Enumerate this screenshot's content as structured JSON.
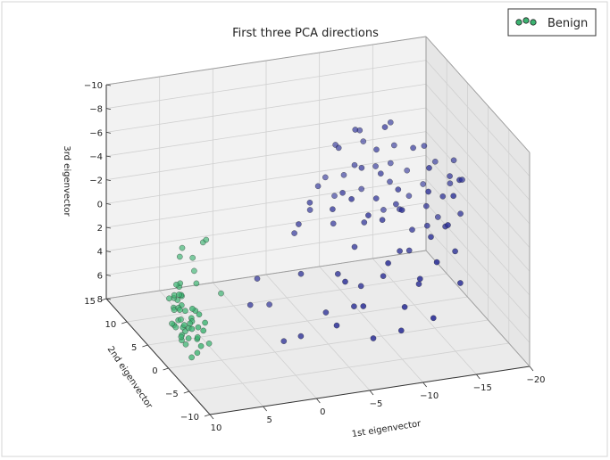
{
  "chart_data": {
    "type": "scatter",
    "title": "First three PCA directions",
    "xlabel": "1st eigenvector",
    "ylabel": "2nd eigenvector",
    "zlabel": "3rd eigenvector",
    "xlim": [
      -20,
      10
    ],
    "ylim": [
      -10,
      15
    ],
    "zlim": [
      -10,
      8
    ],
    "z_inverted": true,
    "x_ticks": [
      "10",
      "5",
      "0",
      "−5",
      "−10",
      "−15",
      "−20"
    ],
    "y_ticks": [
      "15",
      "10",
      "5",
      "0",
      "−5",
      "−10"
    ],
    "z_ticks": [
      "−10",
      "−8",
      "−6",
      "−4",
      "−2",
      "0",
      "2",
      "4",
      "6",
      "8"
    ],
    "grid": true,
    "legend_position": "top-right",
    "series": [
      {
        "name": "Benign",
        "color": "#3cb371",
        "marker": "circle",
        "points": [
          [
            7.9,
            3.2,
            3.8
          ],
          [
            7.6,
            -1.0,
            4.5
          ],
          [
            8.1,
            2.5,
            5.2
          ],
          [
            7.4,
            4.1,
            3.1
          ],
          [
            7.8,
            0.8,
            6.1
          ],
          [
            8.2,
            -2.3,
            4.9
          ],
          [
            7.5,
            3.6,
            2.6
          ],
          [
            7.9,
            1.9,
            5.6
          ],
          [
            8.0,
            -0.4,
            3.9
          ],
          [
            7.3,
            2.9,
            6.4
          ],
          [
            7.7,
            4.6,
            4.2
          ],
          [
            8.3,
            1.2,
            3.4
          ],
          [
            7.6,
            -1.7,
            5.8
          ],
          [
            8.0,
            3.9,
            4.7
          ],
          [
            7.4,
            0.2,
            3.6
          ],
          [
            7.9,
            2.2,
            6.8
          ],
          [
            8.1,
            -0.9,
            2.9
          ],
          [
            7.6,
            4.8,
            5.3
          ],
          [
            7.8,
            1.6,
            4.1
          ],
          [
            8.2,
            3.3,
            5.9
          ],
          [
            7.5,
            -2.0,
            4.4
          ],
          [
            7.9,
            0.5,
            5.1
          ],
          [
            7.7,
            2.7,
            3.3
          ],
          [
            8.0,
            4.3,
            6.2
          ],
          [
            7.4,
            1.0,
            4.8
          ],
          [
            7.8,
            -1.3,
            6.5
          ],
          [
            8.1,
            3.0,
            2.4
          ],
          [
            7.6,
            2.0,
            7.1
          ],
          [
            7.9,
            4.0,
            3.7
          ],
          [
            7.5,
            -0.6,
            5.5
          ],
          [
            8.2,
            1.4,
            6.0
          ],
          [
            7.7,
            3.5,
            4.6
          ],
          [
            7.3,
            -1.9,
            3.8
          ],
          [
            8.0,
            2.4,
            4.3
          ],
          [
            7.8,
            0.0,
            5.0
          ],
          [
            7.6,
            4.4,
            6.6
          ],
          [
            8.1,
            1.8,
            2.8
          ],
          [
            7.9,
            -0.2,
            7.3
          ],
          [
            7.4,
            3.7,
            5.7
          ],
          [
            8.0,
            2.6,
            3.1
          ],
          [
            7.2,
            2.0,
            5.4
          ],
          [
            8.4,
            0.3,
            4.7
          ],
          [
            7.7,
            -1.5,
            3.2
          ],
          [
            7.6,
            3.1,
            6.9
          ],
          [
            8.3,
            4.2,
            4.0
          ],
          [
            6.8,
            5.5,
            1.2
          ],
          [
            6.3,
            6.2,
            0.8
          ],
          [
            5.9,
            3.8,
            2.9
          ],
          [
            5.2,
            6.5,
            1.9
          ],
          [
            5.6,
            1.5,
            7.1
          ],
          [
            4.9,
            6.9,
            3.2
          ],
          [
            4.0,
            7.1,
            1.0
          ],
          [
            3.2,
            4.8,
            4.5
          ],
          [
            3.9,
            6.6,
            0.6
          ]
        ]
      },
      {
        "name": "",
        "color": "#2b2f96",
        "marker": "circle",
        "points": [
          [
            -9.0,
            8.8,
            -0.5
          ],
          [
            -10.3,
            7.3,
            -3.5
          ],
          [
            -11.3,
            8.2,
            -1.0
          ],
          [
            -12.9,
            7.0,
            0.5
          ],
          [
            -14.3,
            8.9,
            -2.5
          ],
          [
            -15.6,
            7.8,
            0.0
          ],
          [
            -12.4,
            7.6,
            -3.0
          ],
          [
            -10.0,
            9.1,
            -2.0
          ],
          [
            -16.0,
            9.3,
            -1.5
          ],
          [
            -11.9,
            9.3,
            -4.5
          ],
          [
            -17.2,
            8.5,
            -0.5
          ],
          [
            -8.9,
            8.3,
            -5.0
          ],
          [
            -14.6,
            8.8,
            -4.0
          ],
          [
            -13.3,
            6.5,
            -2.0
          ],
          [
            -12.6,
            3.2,
            -1.5
          ],
          [
            -7.7,
            3.5,
            -3.0
          ],
          [
            -9.5,
            2.9,
            -0.5
          ],
          [
            -11.4,
            3.8,
            -4.0
          ],
          [
            -13.8,
            2.4,
            0.5
          ],
          [
            -10.5,
            2.6,
            -2.5
          ],
          [
            -15.4,
            3.1,
            -1.0
          ],
          [
            -8.2,
            1.9,
            1.0
          ],
          [
            -12.1,
            1.4,
            -3.5
          ],
          [
            -14.9,
            1.6,
            0.0
          ],
          [
            -9.8,
            4.3,
            -4.5
          ],
          [
            -16.6,
            2.2,
            -2.0
          ],
          [
            -7.3,
            4.7,
            0.0
          ],
          [
            -11.5,
            5.1,
            -5.5
          ],
          [
            -13.4,
            4.4,
            -0.5
          ],
          [
            -17.8,
            3.6,
            -3.0
          ],
          [
            -10.3,
            0.6,
            -1.5
          ],
          [
            -12.9,
            0.8,
            1.5
          ],
          [
            -8.6,
            -0.4,
            -2.5
          ],
          [
            -15.9,
            -0.2,
            -0.5
          ],
          [
            -11.2,
            -1.3,
            0.5
          ],
          [
            -14.0,
            -1.0,
            -4.0
          ],
          [
            -9.3,
            -2.2,
            2.0
          ],
          [
            -13.5,
            -2.9,
            -1.0
          ],
          [
            -10.9,
            -2.6,
            -3.5
          ],
          [
            -16.2,
            -1.8,
            1.0
          ],
          [
            -7.6,
            -1.2,
            3.0
          ],
          [
            -12.1,
            -3.6,
            2.5
          ],
          [
            -14.9,
            -3.4,
            -2.0
          ],
          [
            -8.9,
            -4.4,
            0.0
          ],
          [
            -11.7,
            -4.9,
            1.5
          ],
          [
            -17.0,
            -0.8,
            -4.5
          ],
          [
            -6.4,
            -2.6,
            4.0
          ],
          [
            -10.1,
            -5.3,
            3.5
          ],
          [
            -13.0,
            -5.6,
            0.0
          ],
          [
            -15.6,
            -4.6,
            2.5
          ],
          [
            -9.4,
            -6.3,
            5.0
          ],
          [
            -12.1,
            -7.1,
            4.0
          ],
          [
            -5.3,
            -3.3,
            1.5
          ],
          [
            -7.4,
            -4.7,
            6.0
          ],
          [
            -4.5,
            -0.7,
            5.0
          ],
          [
            -3.1,
            1.7,
            2.5
          ],
          [
            -2.0,
            -1.1,
            6.5
          ],
          [
            -1.1,
            0.7,
            7.5
          ],
          [
            -5.5,
            5.7,
            -1.0
          ],
          [
            -6.6,
            6.6,
            -2.5
          ],
          [
            -3.8,
            5.1,
            0.5
          ],
          [
            -8.3,
            9.2,
            -2.0
          ],
          [
            -18.1,
            7.9,
            -2.5
          ],
          [
            -18.6,
            5.6,
            -1.5
          ],
          [
            -17.3,
            5.2,
            1.0
          ],
          [
            -16.6,
            6.7,
            -4.5
          ],
          [
            -13.8,
            7.6,
            -6.5
          ],
          [
            -11.1,
            8.1,
            -6.0
          ],
          [
            -15.1,
            5.5,
            -5.0
          ],
          [
            -9.9,
            6.1,
            -7.0
          ],
          [
            -12.1,
            4.6,
            -7.5
          ],
          [
            -8.5,
            6.5,
            -5.5
          ],
          [
            -14.5,
            0.1,
            -5.5
          ],
          [
            -16.2,
            -1.4,
            -3.5
          ],
          [
            -18.1,
            1.8,
            -0.5
          ],
          [
            -19.0,
            3.7,
            -2.5
          ],
          [
            -6.1,
            1.8,
            -2.5
          ],
          [
            -7.1,
            -0.2,
            -4.0
          ],
          [
            -4.7,
            3.7,
            -2.5
          ],
          [
            -5.7,
            -0.5,
            2.0
          ],
          [
            -3.5,
            3.3,
            -1.0
          ],
          [
            -6.3,
            -5.1,
            3.0
          ],
          [
            -4.0,
            -4.6,
            4.5
          ],
          [
            0.0,
            4.3,
            3.5
          ],
          [
            1.2,
            2.9,
            5.0
          ],
          [
            -1.3,
            4.7,
            6.0
          ],
          [
            -19.3,
            6.5,
            -3.0
          ]
        ]
      }
    ]
  }
}
